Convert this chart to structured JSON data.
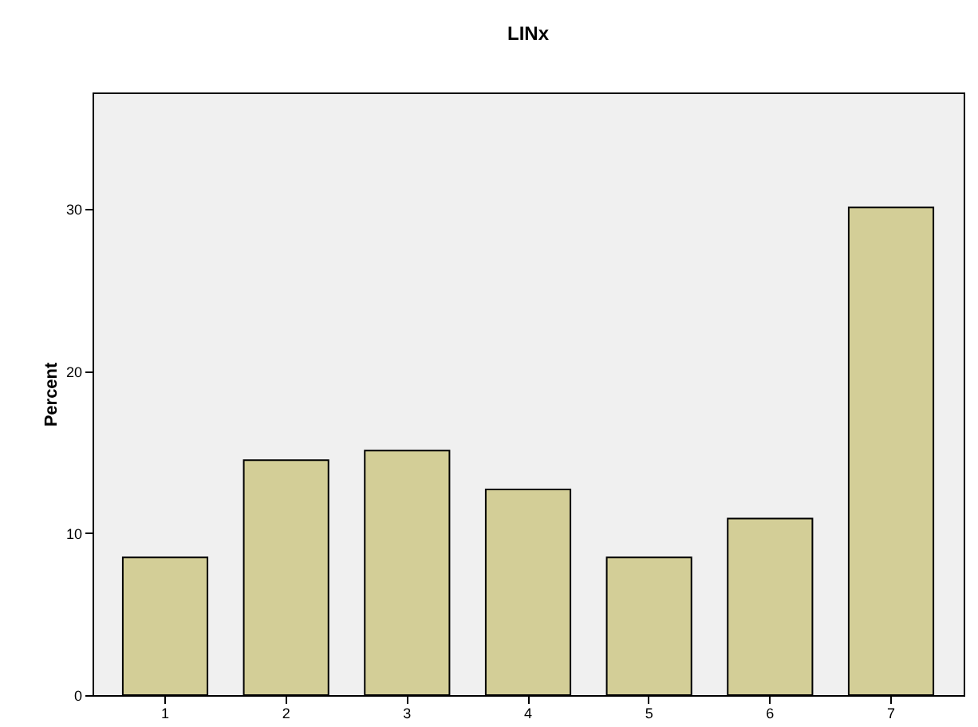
{
  "chart_data": {
    "type": "bar",
    "title": "LINx",
    "ylabel": "Percent",
    "categories": [
      "1",
      "2",
      "3",
      "4",
      "5",
      "6",
      "7"
    ],
    "values": [
      8.5,
      14.5,
      15.1,
      12.7,
      8.5,
      10.9,
      30.1
    ],
    "color": "#d3ce97",
    "ylim": [
      0,
      37.2
    ],
    "yticks": [
      0,
      10,
      20,
      30
    ],
    "grid": false
  }
}
